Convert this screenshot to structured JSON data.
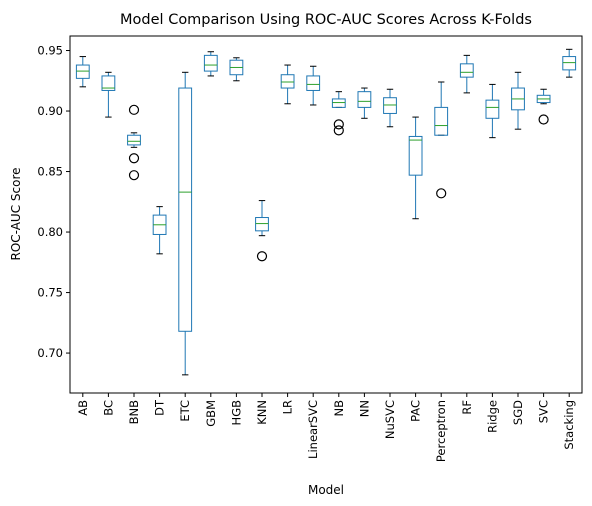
{
  "chart_data": {
    "type": "box",
    "title": "Model Comparison Using ROC-AUC Scores Across K-Folds",
    "xlabel": "Model",
    "ylabel": "ROC-AUC Score",
    "ylim": [
      0.667,
      0.962
    ],
    "yticks": [
      "0.70",
      "0.75",
      "0.80",
      "0.85",
      "0.90",
      "0.95"
    ],
    "grid": false,
    "box_color": "#1f77b4",
    "median_color": "#2ca02c",
    "categories": [
      "AB",
      "BC",
      "BNB",
      "DT",
      "ETC",
      "GBM",
      "HGB",
      "KNN",
      "LR",
      "LinearSVC",
      "NB",
      "NN",
      "NuSVC",
      "PAC",
      "Perceptron",
      "RF",
      "Ridge",
      "SGD",
      "SVC",
      "Stacking"
    ],
    "boxes": [
      {
        "whislo": 0.92,
        "q1": 0.927,
        "med": 0.933,
        "q3": 0.938,
        "whishi": 0.945,
        "fliers": []
      },
      {
        "whislo": 0.895,
        "q1": 0.917,
        "med": 0.919,
        "q3": 0.929,
        "whishi": 0.932,
        "fliers": []
      },
      {
        "whislo": 0.87,
        "q1": 0.872,
        "med": 0.875,
        "q3": 0.88,
        "whishi": 0.882,
        "fliers": [
          0.901,
          0.861,
          0.847
        ]
      },
      {
        "whislo": 0.782,
        "q1": 0.798,
        "med": 0.806,
        "q3": 0.814,
        "whishi": 0.821,
        "fliers": []
      },
      {
        "whislo": 0.682,
        "q1": 0.718,
        "med": 0.833,
        "q3": 0.919,
        "whishi": 0.932,
        "fliers": []
      },
      {
        "whislo": 0.929,
        "q1": 0.933,
        "med": 0.938,
        "q3": 0.946,
        "whishi": 0.949,
        "fliers": []
      },
      {
        "whislo": 0.925,
        "q1": 0.93,
        "med": 0.936,
        "q3": 0.942,
        "whishi": 0.944,
        "fliers": []
      },
      {
        "whislo": 0.797,
        "q1": 0.801,
        "med": 0.807,
        "q3": 0.812,
        "whishi": 0.826,
        "fliers": [
          0.78
        ]
      },
      {
        "whislo": 0.906,
        "q1": 0.919,
        "med": 0.924,
        "q3": 0.93,
        "whishi": 0.938,
        "fliers": []
      },
      {
        "whislo": 0.905,
        "q1": 0.917,
        "med": 0.922,
        "q3": 0.929,
        "whishi": 0.937,
        "fliers": []
      },
      {
        "whislo": 0.903,
        "q1": 0.903,
        "med": 0.907,
        "q3": 0.91,
        "whishi": 0.916,
        "fliers": [
          0.889,
          0.884
        ]
      },
      {
        "whislo": 0.894,
        "q1": 0.903,
        "med": 0.908,
        "q3": 0.916,
        "whishi": 0.919,
        "fliers": []
      },
      {
        "whislo": 0.887,
        "q1": 0.898,
        "med": 0.905,
        "q3": 0.911,
        "whishi": 0.918,
        "fliers": []
      },
      {
        "whislo": 0.811,
        "q1": 0.847,
        "med": 0.876,
        "q3": 0.879,
        "whishi": 0.895,
        "fliers": []
      },
      {
        "whislo": 0.88,
        "q1": 0.88,
        "med": 0.888,
        "q3": 0.903,
        "whishi": 0.924,
        "fliers": [
          0.832
        ]
      },
      {
        "whislo": 0.915,
        "q1": 0.928,
        "med": 0.932,
        "q3": 0.939,
        "whishi": 0.946,
        "fliers": []
      },
      {
        "whislo": 0.878,
        "q1": 0.894,
        "med": 0.903,
        "q3": 0.909,
        "whishi": 0.922,
        "fliers": []
      },
      {
        "whislo": 0.885,
        "q1": 0.901,
        "med": 0.91,
        "q3": 0.919,
        "whishi": 0.932,
        "fliers": []
      },
      {
        "whislo": 0.906,
        "q1": 0.907,
        "med": 0.91,
        "q3": 0.913,
        "whishi": 0.918,
        "fliers": [
          0.893
        ]
      },
      {
        "whislo": 0.928,
        "q1": 0.934,
        "med": 0.94,
        "q3": 0.945,
        "whishi": 0.951,
        "fliers": []
      }
    ]
  }
}
